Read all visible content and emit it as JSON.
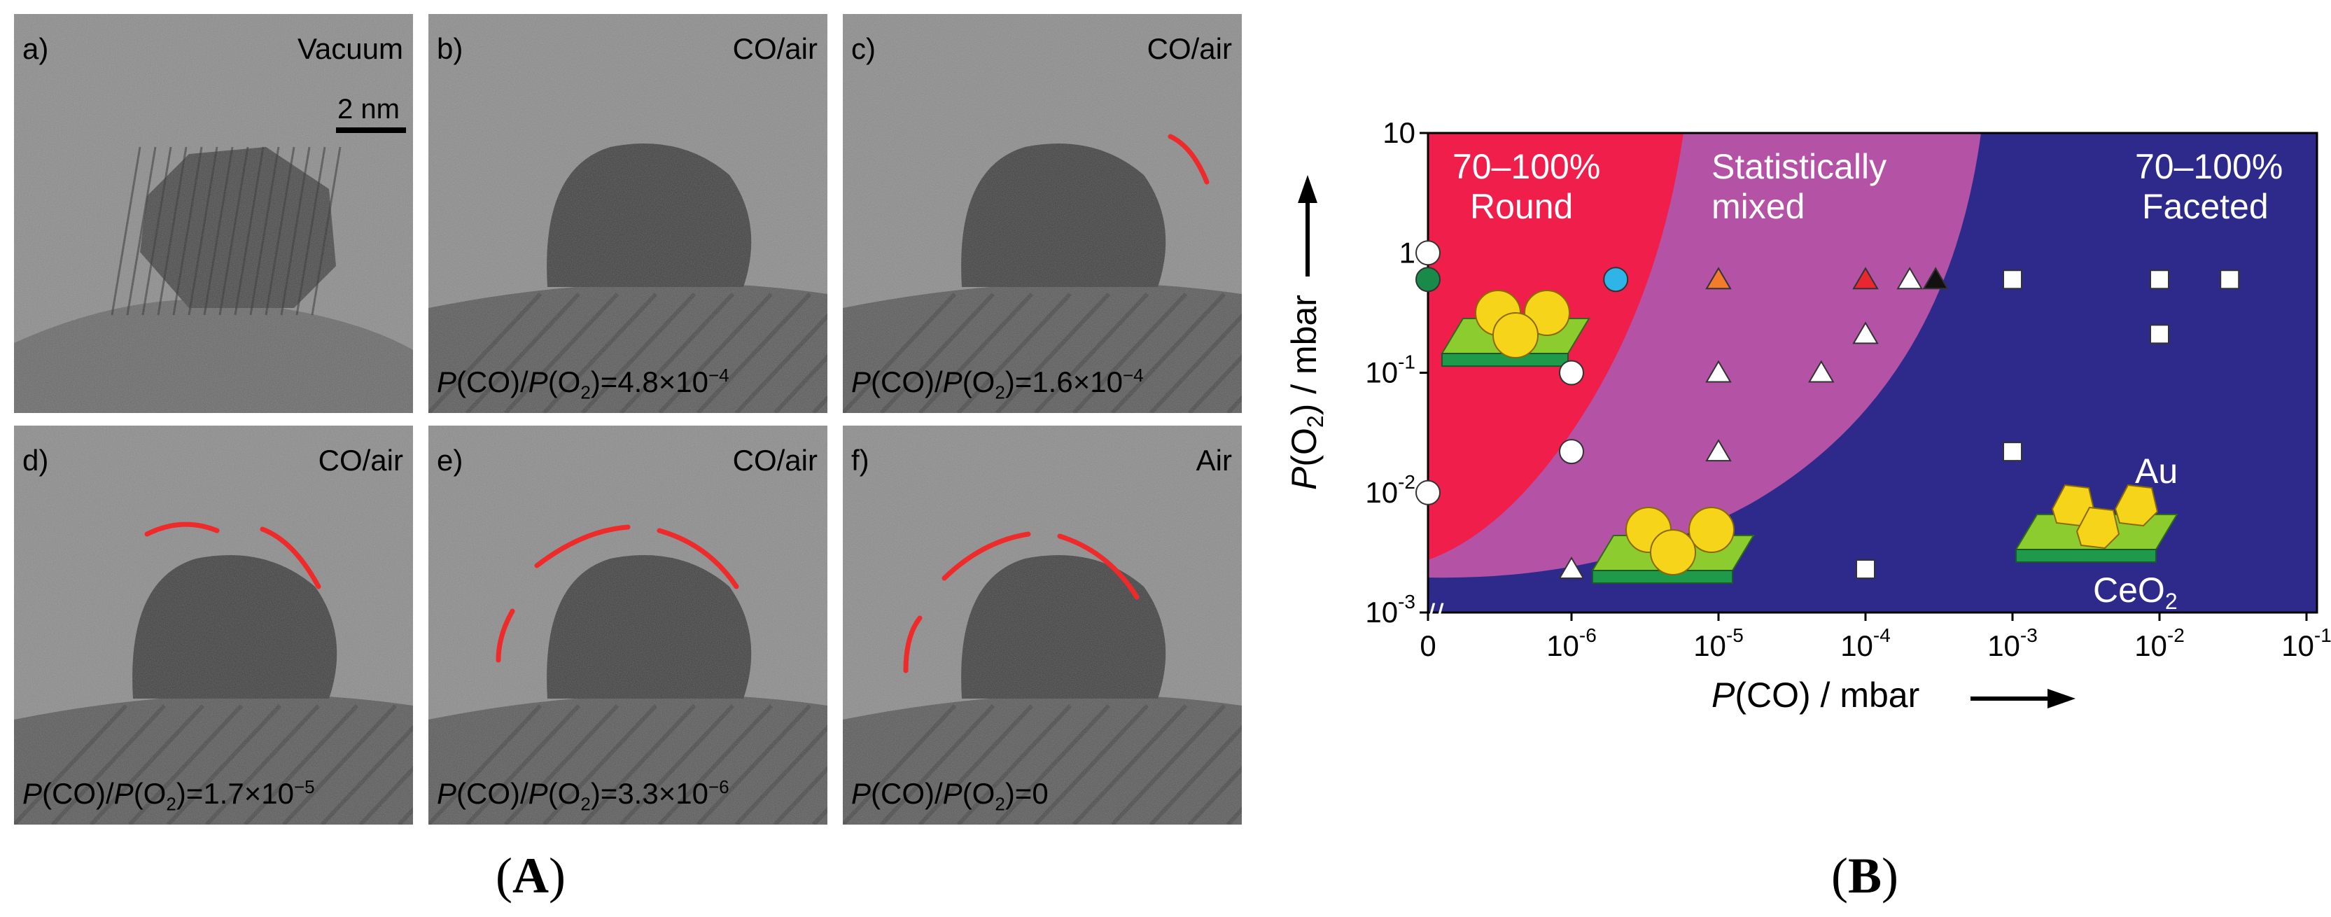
{
  "panels": [
    {
      "id": "a",
      "label": "a)",
      "condition": "Vacuum",
      "ratio_value": "",
      "scale": "2 nm"
    },
    {
      "id": "b",
      "label": "b)",
      "condition": "CO/air",
      "ratio_value": "4.8",
      "ratio_exp": "−4"
    },
    {
      "id": "c",
      "label": "c)",
      "condition": "CO/air",
      "ratio_value": "1.6",
      "ratio_exp": "−4"
    },
    {
      "id": "d",
      "label": "d)",
      "condition": "CO/air",
      "ratio_value": "1.7",
      "ratio_exp": "−5"
    },
    {
      "id": "e",
      "label": "e)",
      "condition": "CO/air",
      "ratio_value": "3.3",
      "ratio_exp": "−6"
    },
    {
      "id": "f",
      "label": "f)",
      "condition": "Air",
      "ratio_value": "0"
    }
  ],
  "captions": {
    "A": "A",
    "B": "B"
  },
  "chart_data": {
    "type": "scatter",
    "xlabel": "P(CO) / mbar",
    "ylabel": "P(O2) / mbar",
    "x_ticks": [
      "0",
      "10-6",
      "10-5",
      "10-4",
      "10-3",
      "10-2",
      "10-1"
    ],
    "y_ticks": [
      "10",
      "1",
      "10-1",
      "10-2",
      "10-3"
    ],
    "regions": [
      {
        "name": "70–100% Round",
        "line1": "70–100%",
        "line2": "Round",
        "color": "#f01e4b"
      },
      {
        "name": "Statistically mixed",
        "line1": "Statistically",
        "line2": "mixed",
        "color": "#b452a5"
      },
      {
        "name": "70–100% Faceted",
        "line1": "70–100%",
        "line2": "Faceted",
        "color": "#2e2a8c"
      }
    ],
    "inset_labels": {
      "au": "Au",
      "ceo2": "CeO",
      "ceo2_sub": "2"
    },
    "circles": [
      {
        "x": "0",
        "y": 1.0,
        "fill": "#ffffff"
      },
      {
        "x": "0",
        "y": 0.6,
        "fill": "#1a8a4a"
      },
      {
        "x": "0",
        "y": 0.01,
        "fill": "#ffffff"
      },
      {
        "x": 1e-06,
        "y": 0.1,
        "fill": "#ffffff"
      },
      {
        "x": 1e-06,
        "y": 0.022,
        "fill": "#ffffff"
      },
      {
        "x": 2e-06,
        "y": 0.6,
        "fill": "#2eb4e6"
      }
    ],
    "triangles": [
      {
        "x": 1e-06,
        "y": 0.0023,
        "fill": "#ffffff"
      },
      {
        "x": 1e-05,
        "y": 0.6,
        "fill": "#f27c2b"
      },
      {
        "x": 1e-05,
        "y": 0.1,
        "fill": "#ffffff"
      },
      {
        "x": 1e-05,
        "y": 0.022,
        "fill": "#ffffff"
      },
      {
        "x": 5e-05,
        "y": 0.1,
        "fill": "#ffffff"
      },
      {
        "x": 0.0001,
        "y": 0.6,
        "fill": "#e8282e"
      },
      {
        "x": 0.0001,
        "y": 0.21,
        "fill": "#ffffff"
      },
      {
        "x": 0.0002,
        "y": 0.6,
        "fill": "#ffffff"
      },
      {
        "x": 0.0003,
        "y": 0.6,
        "fill": "#111111"
      }
    ],
    "squares": [
      {
        "x": 0.0001,
        "y": 0.0023
      },
      {
        "x": 0.001,
        "y": 0.6
      },
      {
        "x": 0.001,
        "y": 0.022
      },
      {
        "x": 0.01,
        "y": 0.6
      },
      {
        "x": 0.01,
        "y": 0.21
      },
      {
        "x": 0.03,
        "y": 0.6
      }
    ]
  }
}
